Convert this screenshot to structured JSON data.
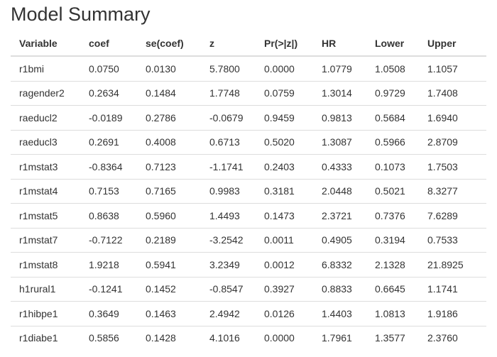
{
  "title": "Model Summary",
  "table": {
    "columns": [
      "Variable",
      "coef",
      "se(coef)",
      "z",
      "Pr(>|z|)",
      "HR",
      "Lower",
      "Upper"
    ],
    "rows": [
      [
        "r1bmi",
        "0.0750",
        "0.0130",
        "5.7800",
        "0.0000",
        "1.0779",
        "1.0508",
        "1.1057"
      ],
      [
        "ragender2",
        "0.2634",
        "0.1484",
        "1.7748",
        "0.0759",
        "1.3014",
        "0.9729",
        "1.7408"
      ],
      [
        "raeducl2",
        "-0.0189",
        "0.2786",
        "-0.0679",
        "0.9459",
        "0.9813",
        "0.5684",
        "1.6940"
      ],
      [
        "raeducl3",
        "0.2691",
        "0.4008",
        "0.6713",
        "0.5020",
        "1.3087",
        "0.5966",
        "2.8709"
      ],
      [
        "r1mstat3",
        "-0.8364",
        "0.7123",
        "-1.1741",
        "0.2403",
        "0.4333",
        "0.1073",
        "1.7503"
      ],
      [
        "r1mstat4",
        "0.7153",
        "0.7165",
        "0.9983",
        "0.3181",
        "2.0448",
        "0.5021",
        "8.3277"
      ],
      [
        "r1mstat5",
        "0.8638",
        "0.5960",
        "1.4493",
        "0.1473",
        "2.3721",
        "0.7376",
        "7.6289"
      ],
      [
        "r1mstat7",
        "-0.7122",
        "0.2189",
        "-3.2542",
        "0.0011",
        "0.4905",
        "0.3194",
        "0.7533"
      ],
      [
        "r1mstat8",
        "1.9218",
        "0.5941",
        "3.2349",
        "0.0012",
        "6.8332",
        "2.1328",
        "21.8925"
      ],
      [
        "h1rural1",
        "-0.1241",
        "0.1452",
        "-0.8547",
        "0.3927",
        "0.8833",
        "0.6645",
        "1.1741"
      ],
      [
        "r1hibpe1",
        "0.3649",
        "0.1463",
        "2.4942",
        "0.0126",
        "1.4403",
        "1.0813",
        "1.9186"
      ],
      [
        "r1diabe1",
        "0.5856",
        "0.1428",
        "4.1016",
        "0.0000",
        "1.7961",
        "1.3577",
        "2.3760"
      ]
    ]
  }
}
